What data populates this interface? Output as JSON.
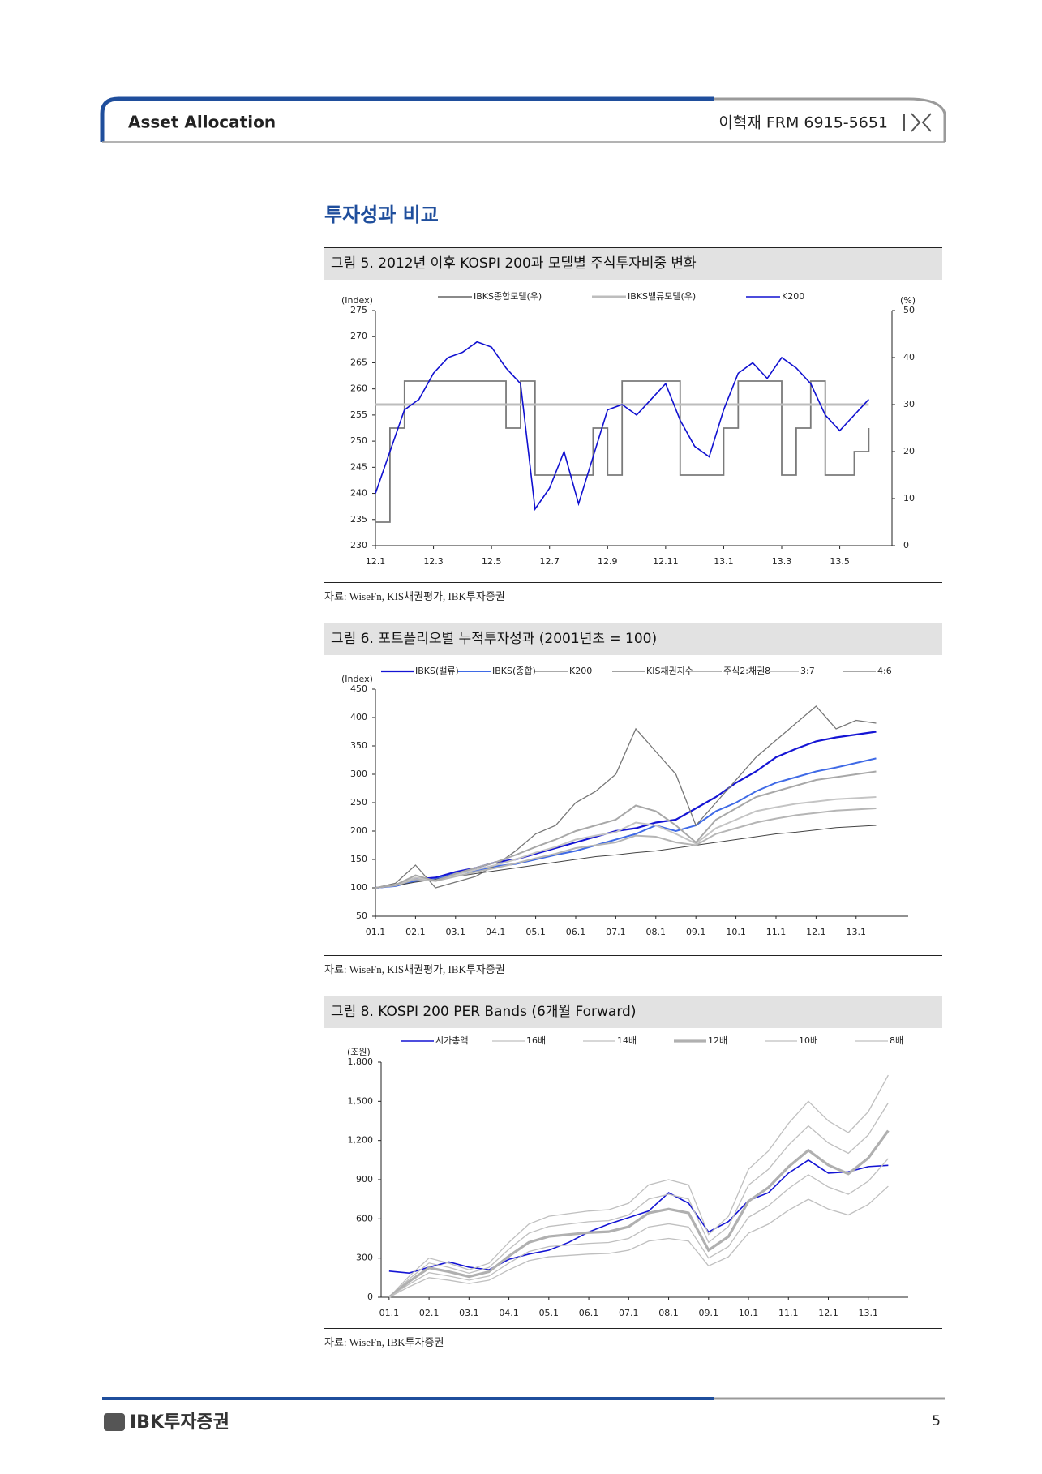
{
  "header": {
    "section": "Asset Allocation",
    "author": "이혁재 FRM 6915-5651"
  },
  "heading": "투자성과 비교",
  "chart_data": [
    {
      "type": "line",
      "title": "그림 5. 2012년 이후 KOSPI 200과 모델별 주식투자비중 변화",
      "source": "자료: WiseFn, KIS채권평가, IBK투자증권",
      "ylabel": "(Index)",
      "y2label": "(%)",
      "x": [
        0,
        0.5,
        1,
        1.5,
        2,
        2.5,
        3,
        3.5,
        4,
        4.5,
        5,
        5.5,
        6,
        6.5,
        7,
        7.5,
        8,
        8.5,
        9,
        9.5,
        10,
        10.5,
        11,
        11.5,
        12,
        12.5,
        13,
        13.5,
        14,
        14.5,
        15,
        15.5,
        16,
        16.5,
        17
      ],
      "xlim": [
        0,
        17.8
      ],
      "xticks": [
        {
          "value": 0,
          "label": "12.1"
        },
        {
          "value": 2,
          "label": "12.3"
        },
        {
          "value": 4,
          "label": "12.5"
        },
        {
          "value": 6,
          "label": "12.7"
        },
        {
          "value": 8,
          "label": "12.9"
        },
        {
          "value": 10,
          "label": "12.11"
        },
        {
          "value": 12,
          "label": "13.1"
        },
        {
          "value": 14,
          "label": "13.3"
        },
        {
          "value": 16,
          "label": "13.5"
        }
      ],
      "ylim": [
        230,
        275
      ],
      "yticks": [
        230,
        235,
        240,
        245,
        250,
        255,
        260,
        265,
        270,
        275
      ],
      "y2lim": [
        0,
        50
      ],
      "y2ticks": [
        0,
        10,
        20,
        30,
        40,
        50
      ],
      "series": [
        {
          "name": "IBKS종합모델(우)",
          "color": "#7a7a7a",
          "width": 1.8,
          "axis": "y2",
          "step": true,
          "values": [
            5,
            25,
            35,
            35,
            35,
            35,
            35,
            35,
            35,
            25,
            35,
            15,
            15,
            15,
            15,
            25,
            15,
            35,
            35,
            35,
            35,
            15,
            15,
            15,
            25,
            35,
            35,
            35,
            15,
            25,
            35,
            15,
            15,
            20,
            25
          ]
        },
        {
          "name": "IBKS밸류모델(우)",
          "color": "#bdbdbd",
          "width": 3,
          "axis": "y2",
          "values": [
            30,
            30,
            30,
            30,
            30,
            30,
            30,
            30,
            30,
            30,
            30,
            30,
            30,
            30,
            30,
            30,
            30,
            30,
            30,
            30,
            30,
            30,
            30,
            30,
            30,
            30,
            30,
            30,
            30,
            30,
            30,
            30,
            30,
            30,
            30
          ]
        },
        {
          "name": "K200",
          "color": "#1010d0",
          "width": 1.6,
          "values": [
            240,
            248,
            256,
            258,
            263,
            266,
            267,
            269,
            268,
            264,
            261,
            237,
            241,
            248,
            238,
            247,
            256,
            257,
            255,
            258,
            261,
            254,
            249,
            247,
            256,
            263,
            265,
            262,
            266,
            264,
            261,
            255,
            252,
            255,
            258
          ]
        }
      ]
    },
    {
      "type": "line",
      "title": "그림 6. 포트폴리오별 누적투자성과 (2001년초 = 100)",
      "source": "자료: WiseFn, KIS채권평가, IBK투자증권",
      "ylabel": "(Index)",
      "x": [
        0,
        0.5,
        1,
        1.5,
        2,
        2.5,
        3,
        3.5,
        4,
        4.5,
        5,
        5.5,
        6,
        6.5,
        7,
        7.5,
        8,
        8.5,
        9,
        9.5,
        10,
        10.5,
        11,
        11.5,
        12,
        12.5
      ],
      "xlim": [
        0,
        13.3
      ],
      "xticks": [
        {
          "value": 0,
          "label": "01.1"
        },
        {
          "value": 1,
          "label": "02.1"
        },
        {
          "value": 2,
          "label": "03.1"
        },
        {
          "value": 3,
          "label": "04.1"
        },
        {
          "value": 4,
          "label": "05.1"
        },
        {
          "value": 5,
          "label": "06.1"
        },
        {
          "value": 6,
          "label": "07.1"
        },
        {
          "value": 7,
          "label": "08.1"
        },
        {
          "value": 8,
          "label": "09.1"
        },
        {
          "value": 9,
          "label": "10.1"
        },
        {
          "value": 10,
          "label": "11.1"
        },
        {
          "value": 11,
          "label": "12.1"
        },
        {
          "value": 12,
          "label": "13.1"
        }
      ],
      "ylim": [
        50,
        450
      ],
      "yticks": [
        50,
        100,
        150,
        200,
        250,
        300,
        350,
        400,
        450
      ],
      "series": [
        {
          "name": "IBKS(밸류)",
          "color": "#1414d4",
          "width": 2.2,
          "values": [
            100,
            104,
            115,
            118,
            128,
            135,
            145,
            150,
            160,
            170,
            180,
            190,
            200,
            205,
            215,
            220,
            240,
            260,
            285,
            305,
            330,
            345,
            358,
            365,
            370,
            375
          ]
        },
        {
          "name": "IBKS(종합)",
          "color": "#3f6ae6",
          "width": 2,
          "values": [
            100,
            103,
            112,
            115,
            125,
            130,
            138,
            142,
            150,
            158,
            165,
            175,
            185,
            195,
            210,
            200,
            210,
            235,
            250,
            270,
            285,
            295,
            305,
            312,
            320,
            328
          ]
        },
        {
          "name": "K200",
          "color": "#777777",
          "width": 1.3,
          "values": [
            100,
            108,
            140,
            100,
            110,
            120,
            140,
            165,
            195,
            210,
            250,
            270,
            300,
            380,
            340,
            300,
            210,
            250,
            290,
            330,
            360,
            390,
            420,
            380,
            395,
            390
          ]
        },
        {
          "name": "KIS채권지수",
          "color": "#444444",
          "width": 1,
          "values": [
            100,
            104,
            110,
            115,
            120,
            125,
            130,
            135,
            140,
            145,
            150,
            155,
            158,
            162,
            165,
            170,
            175,
            180,
            185,
            190,
            195,
            198,
            202,
            206,
            208,
            210
          ]
        },
        {
          "name": "주식2:채권8",
          "color": "#b5b5b5",
          "width": 2,
          "values": [
            100,
            104,
            115,
            112,
            120,
            128,
            135,
            143,
            152,
            160,
            170,
            175,
            180,
            192,
            190,
            180,
            175,
            195,
            205,
            215,
            222,
            228,
            232,
            236,
            238,
            240
          ]
        },
        {
          "name": "3:7",
          "color": "#c4c4c4",
          "width": 2,
          "values": [
            100,
            105,
            118,
            113,
            123,
            132,
            140,
            150,
            162,
            172,
            185,
            192,
            198,
            215,
            210,
            195,
            178,
            205,
            220,
            235,
            242,
            248,
            252,
            256,
            258,
            260
          ]
        },
        {
          "name": "4:6",
          "color": "#a8a8a8",
          "width": 2,
          "values": [
            100,
            105,
            122,
            112,
            125,
            135,
            145,
            158,
            172,
            185,
            200,
            210,
            220,
            245,
            235,
            210,
            180,
            220,
            240,
            260,
            270,
            280,
            290,
            295,
            300,
            305
          ]
        }
      ]
    },
    {
      "type": "line",
      "title": "그림 8. KOSPI 200 PER Bands (6개월 Forward)",
      "source": "자료: WiseFn, IBK투자증권",
      "ylabel": "(조원)",
      "x": [
        0,
        0.5,
        1,
        1.5,
        2,
        2.5,
        3,
        3.5,
        4,
        4.5,
        5,
        5.5,
        6,
        6.5,
        7,
        7.5,
        8,
        8.5,
        9,
        9.5,
        10,
        10.5,
        11,
        11.5,
        12,
        12.5
      ],
      "xlim": [
        -0.2,
        13
      ],
      "xticks": [
        {
          "value": 0,
          "label": "01.1"
        },
        {
          "value": 1,
          "label": "02.1"
        },
        {
          "value": 2,
          "label": "03.1"
        },
        {
          "value": 3,
          "label": "04.1"
        },
        {
          "value": 4,
          "label": "05.1"
        },
        {
          "value": 5,
          "label": "06.1"
        },
        {
          "value": 6,
          "label": "07.1"
        },
        {
          "value": 7,
          "label": "08.1"
        },
        {
          "value": 8,
          "label": "09.1"
        },
        {
          "value": 9,
          "label": "10.1"
        },
        {
          "value": 10,
          "label": "11.1"
        },
        {
          "value": 11,
          "label": "12.1"
        },
        {
          "value": 12,
          "label": "13.1"
        }
      ],
      "ylim": [
        0,
        1800
      ],
      "yticks": [
        0,
        300,
        600,
        900,
        {
          "value": 1200,
          "label": "1,200"
        },
        {
          "value": 1500,
          "label": "1,500"
        },
        {
          "value": 1800,
          "label": "1,800"
        }
      ],
      "series": [
        {
          "name": "시가총액",
          "color": "#1414d4",
          "width": 1.6,
          "values": [
            200,
            185,
            230,
            270,
            230,
            210,
            290,
            330,
            360,
            420,
            500,
            560,
            610,
            660,
            800,
            720,
            500,
            580,
            740,
            800,
            950,
            1050,
            950,
            960,
            1000,
            1010
          ]
        },
        {
          "name": "16배",
          "color": "#bfbfbf",
          "width": 1.3,
          "values": [
            0,
            160,
            300,
            260,
            210,
            260,
            420,
            560,
            620,
            640,
            660,
            670,
            720,
            860,
            900,
            860,
            480,
            620,
            980,
            1120,
            1330,
            1500,
            1350,
            1260,
            1420,
            1700
          ]
        },
        {
          "name": "14배",
          "color": "#bfbfbf",
          "width": 1.3,
          "values": [
            0,
            140,
            262,
            228,
            184,
            228,
            368,
            490,
            542,
            560,
            578,
            586,
            630,
            752,
            788,
            752,
            420,
            542,
            858,
            980,
            1164,
            1312,
            1181,
            1102,
            1242,
            1488
          ]
        },
        {
          "name": "12배",
          "color": "#b0b0b0",
          "width": 3.2,
          "values": [
            0,
            120,
            225,
            195,
            158,
            195,
            315,
            420,
            465,
            480,
            495,
            502,
            540,
            645,
            675,
            645,
            360,
            465,
            735,
            840,
            998,
            1125,
            1012,
            945,
            1065,
            1275
          ]
        },
        {
          "name": "10배",
          "color": "#bfbfbf",
          "width": 1.3,
          "values": [
            0,
            100,
            188,
            162,
            131,
            162,
            262,
            350,
            388,
            400,
            412,
            419,
            450,
            538,
            562,
            538,
            300,
            388,
            612,
            700,
            831,
            938,
            844,
            788,
            888,
            1062
          ]
        },
        {
          "name": "8배",
          "color": "#bfbfbf",
          "width": 1.3,
          "values": [
            0,
            80,
            150,
            130,
            105,
            130,
            210,
            280,
            310,
            320,
            330,
            335,
            360,
            430,
            450,
            430,
            240,
            310,
            490,
            560,
            665,
            750,
            675,
            630,
            710,
            850
          ]
        }
      ]
    }
  ],
  "footer": {
    "logo": "IBK투자증권",
    "page": "5"
  }
}
